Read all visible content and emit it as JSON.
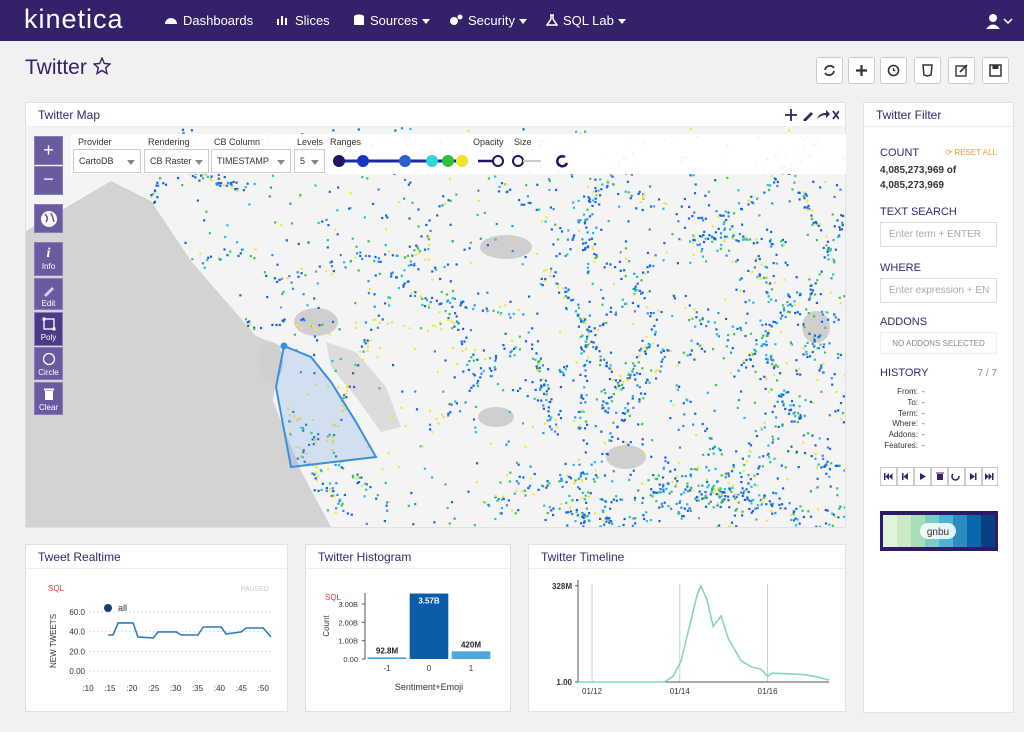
{
  "nav": {
    "brand": "kinetica",
    "items": [
      "Dashboards",
      "Slices",
      "Sources",
      "Security",
      "SQL Lab"
    ]
  },
  "header": {
    "title": "Twitter"
  },
  "map": {
    "title": "Twitter Map",
    "controls": [
      {
        "label": "Provider",
        "value": "CartoDB"
      },
      {
        "label": "Rendering",
        "value": "CB Raster"
      },
      {
        "label": "CB Column",
        "value": "TIMESTAMP"
      },
      {
        "label": "Levels",
        "value": "5"
      }
    ],
    "ranges_label": "Ranges",
    "opacity_label": "Opacity",
    "size_label": "Size",
    "tools": [
      "Info",
      "Edit",
      "Poly",
      "Circle",
      "Clear"
    ]
  },
  "filter": {
    "title": "Twitter Filter",
    "count_label": "COUNT",
    "reset": "RESET ALL",
    "count_filtered": "4,085,273,969 of",
    "count_total": "4,085,273,969",
    "text_search_label": "TEXT SEARCH",
    "text_search_placeholder": "Enter term + ENTER",
    "where_label": "WHERE",
    "where_placeholder": "Enter expression + EN",
    "addons_label": "ADDONS",
    "addons_value": "NO ADDONS SELECTED",
    "history_label": "HISTORY",
    "history_count": "7 / 7",
    "history_rows": [
      {
        "label": "From:",
        "value": "-"
      },
      {
        "label": "To:",
        "value": "-"
      },
      {
        "label": "Term:",
        "value": "-"
      },
      {
        "label": "Where:",
        "value": "-"
      },
      {
        "label": "Addons:",
        "value": "-"
      },
      {
        "label": "Features:",
        "value": "-"
      }
    ],
    "color_scale": "gnbu"
  },
  "chart_data": [
    {
      "type": "line",
      "title": "Tweet Realtime",
      "sql": "SQL",
      "status": "PAUSED",
      "y_label": "NEW TWEETS",
      "x": [
        14.6,
        15.7,
        16.9,
        20.3,
        21.4,
        24.9,
        26,
        30.1,
        31.3,
        35.1,
        36.3,
        40.4,
        41.5,
        45,
        46.1,
        50,
        51.8
      ],
      "series": [
        {
          "name": "all",
          "color": "#2b7bc4",
          "values": [
            36.6,
            36.6,
            48.8,
            48.8,
            34.6,
            33.6,
            39.7,
            39.7,
            36.6,
            36.6,
            44.7,
            44.7,
            37.6,
            39.7,
            43.7,
            43.7,
            34.6
          ]
        }
      ],
      "legend_color": "#123f7a",
      "xlim": [
        8.4,
        52
      ],
      "xticks": [
        {
          "value": 10,
          "label": ":10"
        },
        {
          "value": 15,
          "label": ":15"
        },
        {
          "value": 20,
          "label": ":20"
        },
        {
          "value": 25,
          "label": ":25"
        },
        {
          "value": 30,
          "label": ":30"
        },
        {
          "value": 35,
          "label": ":35"
        },
        {
          "value": 40,
          "label": ":40"
        },
        {
          "value": 45,
          "label": ":45"
        },
        {
          "value": 50,
          "label": ":50"
        }
      ],
      "ylim": [
        -12,
        72
      ],
      "yticks": [
        {
          "value": 0,
          "label": "0.00"
        },
        {
          "value": 20,
          "label": "20.0"
        },
        {
          "value": 40,
          "label": "40.0"
        },
        {
          "value": 60,
          "label": "60.0"
        }
      ],
      "grid": true
    },
    {
      "type": "bar",
      "title": "Twitter Histogram",
      "sql": "SQL",
      "y_label": "Count",
      "x_label": "Sentiment+Emoji",
      "categories": [
        "-1",
        "0",
        "1"
      ],
      "values": [
        92800000,
        3570000000,
        420000000
      ],
      "value_labels": [
        "92.8M",
        "3.57B",
        "420M"
      ],
      "colors": [
        "#4ea8d8",
        "#0b5ba8",
        "#4ea8d8"
      ],
      "ylim": [
        0,
        3600000000
      ],
      "yticks": [
        {
          "value": 0,
          "label": "0.00"
        },
        {
          "value": 1000000000,
          "label": "1.00B"
        },
        {
          "value": 2000000000,
          "label": "2.00B"
        },
        {
          "value": 3000000000,
          "label": "3.00B"
        }
      ]
    },
    {
      "type": "line",
      "title": "Twitter Timeline",
      "x": [
        11.68,
        13.65,
        13.85,
        14.03,
        14.25,
        14.4,
        14.48,
        14.62,
        14.76,
        14.94,
        15.1,
        15.4,
        15.65,
        15.85,
        16.0,
        16.1,
        16.5,
        16.85,
        17.1,
        17.4
      ],
      "series": [
        {
          "color": "#86d6bd",
          "values": [
            1,
            1,
            20000000,
            72000000,
            208000000,
            300000000,
            328000000,
            280000000,
            190000000,
            225000000,
            150000000,
            72000000,
            50000000,
            44000000,
            20000000,
            30000000,
            28000000,
            25000000,
            18000000,
            7000000
          ]
        }
      ],
      "xlim": [
        11.68,
        17.4
      ],
      "xticks": [
        {
          "value": 12,
          "label": "01/12"
        },
        {
          "value": 14,
          "label": "01/14"
        },
        {
          "value": 16,
          "label": "01/16"
        }
      ],
      "ylim": [
        1,
        334000000
      ],
      "yticks": [
        {
          "value": 1,
          "label": "1.00"
        },
        {
          "value": 328000000,
          "label": "328M"
        }
      ],
      "xgrid": true
    }
  ]
}
